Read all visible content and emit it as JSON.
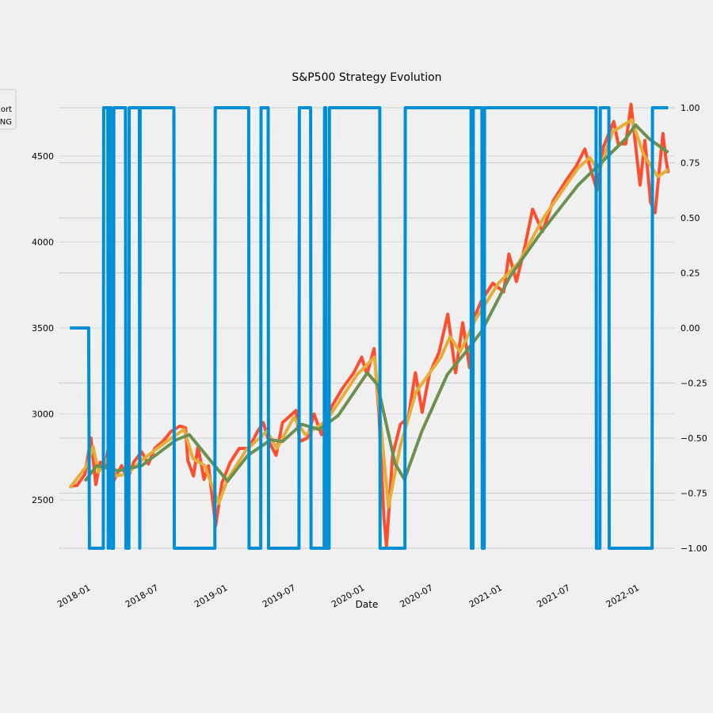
{
  "chart_data": {
    "type": "line",
    "title": "S&P500 Strategy Evolution",
    "xlabel": "Date",
    "ylabel": "",
    "x_ticks": [
      "2018-01",
      "2018-07",
      "2019-01",
      "2019-07",
      "2020-01",
      "2020-07",
      "2021-01",
      "2021-07",
      "2022-01"
    ],
    "y_left_ticks": [
      "2500",
      "3000",
      "3500",
      "4000",
      "4500"
    ],
    "y_right_ticks": [
      "−1.00",
      "−0.75",
      "−0.50",
      "−0.25",
      "0.00",
      "0.25",
      "0.50",
      "0.75",
      "1.00"
    ],
    "ylim_left": [
      2220,
      4780
    ],
    "ylim_right": [
      -1.0,
      1.0
    ],
    "xlim": [
      "2017-11-01",
      "2022-04-30"
    ],
    "grid": true,
    "legend": {
      "placement": "top-left",
      "entries": [
        "ort",
        "NG"
      ]
    },
    "colors": {
      "price": "#fc4f30",
      "ma_short": "#e5ae38",
      "ma_long": "#6d904f",
      "position": "#008fd5"
    },
    "series": [
      {
        "axis": "left",
        "color_key": "price",
        "points": [
          [
            "2017-12-01",
            2580
          ],
          [
            "2017-12-20",
            2585
          ],
          [
            "2018-01-10",
            2650
          ],
          [
            "2018-01-26",
            2860
          ],
          [
            "2018-02-08",
            2590
          ],
          [
            "2018-02-20",
            2720
          ],
          [
            "2018-03-05",
            2690
          ],
          [
            "2018-03-12",
            2790
          ],
          [
            "2018-03-23",
            2590
          ],
          [
            "2018-04-05",
            2650
          ],
          [
            "2018-04-18",
            2700
          ],
          [
            "2018-05-03",
            2620
          ],
          [
            "2018-05-20",
            2720
          ],
          [
            "2018-06-10",
            2780
          ],
          [
            "2018-06-28",
            2710
          ],
          [
            "2018-07-15",
            2800
          ],
          [
            "2018-08-05",
            2840
          ],
          [
            "2018-08-28",
            2900
          ],
          [
            "2018-09-20",
            2930
          ],
          [
            "2018-10-05",
            2920
          ],
          [
            "2018-10-11",
            2730
          ],
          [
            "2018-10-26",
            2640
          ],
          [
            "2018-11-07",
            2810
          ],
          [
            "2018-11-23",
            2620
          ],
          [
            "2018-12-05",
            2700
          ],
          [
            "2018-12-24",
            2350
          ],
          [
            "2019-01-10",
            2600
          ],
          [
            "2019-02-01",
            2720
          ],
          [
            "2019-02-25",
            2800
          ],
          [
            "2019-03-22",
            2800
          ],
          [
            "2019-04-15",
            2900
          ],
          [
            "2019-04-30",
            2950
          ],
          [
            "2019-05-15",
            2840
          ],
          [
            "2019-06-03",
            2760
          ],
          [
            "2019-06-20",
            2950
          ],
          [
            "2019-07-26",
            3020
          ],
          [
            "2019-08-05",
            2840
          ],
          [
            "2019-08-25",
            2860
          ],
          [
            "2019-09-12",
            3000
          ],
          [
            "2019-10-02",
            2880
          ],
          [
            "2019-10-28",
            3040
          ],
          [
            "2019-11-27",
            3150
          ],
          [
            "2019-12-27",
            3240
          ],
          [
            "2020-01-17",
            3330
          ],
          [
            "2020-01-31",
            3230
          ],
          [
            "2020-02-19",
            3380
          ],
          [
            "2020-03-03",
            3000
          ],
          [
            "2020-03-16",
            2400
          ],
          [
            "2020-03-23",
            2230
          ],
          [
            "2020-04-08",
            2760
          ],
          [
            "2020-04-29",
            2940
          ],
          [
            "2020-05-20",
            2980
          ],
          [
            "2020-06-08",
            3240
          ],
          [
            "2020-06-26",
            3010
          ],
          [
            "2020-07-15",
            3230
          ],
          [
            "2020-08-10",
            3360
          ],
          [
            "2020-09-02",
            3580
          ],
          [
            "2020-09-23",
            3240
          ],
          [
            "2020-10-12",
            3530
          ],
          [
            "2020-10-30",
            3270
          ],
          [
            "2020-11-09",
            3550
          ],
          [
            "2020-12-01",
            3660
          ],
          [
            "2020-12-31",
            3760
          ],
          [
            "2021-01-29",
            3710
          ],
          [
            "2021-02-12",
            3930
          ],
          [
            "2021-03-04",
            3770
          ],
          [
            "2021-03-26",
            3970
          ],
          [
            "2021-04-16",
            4190
          ],
          [
            "2021-05-12",
            4060
          ],
          [
            "2021-06-10",
            4240
          ],
          [
            "2021-07-15",
            4360
          ],
          [
            "2021-08-10",
            4440
          ],
          [
            "2021-09-02",
            4540
          ],
          [
            "2021-10-04",
            4300
          ],
          [
            "2021-10-21",
            4550
          ],
          [
            "2021-11-18",
            4700
          ],
          [
            "2021-11-30",
            4570
          ],
          [
            "2021-12-20",
            4570
          ],
          [
            "2022-01-03",
            4800
          ],
          [
            "2022-01-27",
            4330
          ],
          [
            "2022-02-09",
            4590
          ],
          [
            "2022-02-24",
            4230
          ],
          [
            "2022-03-08",
            4170
          ],
          [
            "2022-03-29",
            4630
          ],
          [
            "2022-04-06",
            4480
          ],
          [
            "2022-04-12",
            4400
          ]
        ]
      },
      {
        "axis": "left",
        "color_key": "ma_short",
        "points": [
          [
            "2017-12-01",
            2570
          ],
          [
            "2018-01-15",
            2700
          ],
          [
            "2018-02-01",
            2810
          ],
          [
            "2018-02-15",
            2660
          ],
          [
            "2018-03-10",
            2740
          ],
          [
            "2018-04-01",
            2640
          ],
          [
            "2018-05-01",
            2650
          ],
          [
            "2018-06-15",
            2740
          ],
          [
            "2018-08-15",
            2840
          ],
          [
            "2018-10-01",
            2910
          ],
          [
            "2018-10-25",
            2740
          ],
          [
            "2018-11-25",
            2700
          ],
          [
            "2019-01-01",
            2480
          ],
          [
            "2019-01-25",
            2620
          ],
          [
            "2019-03-15",
            2790
          ],
          [
            "2019-05-10",
            2900
          ],
          [
            "2019-06-05",
            2800
          ],
          [
            "2019-07-20",
            2980
          ],
          [
            "2019-08-20",
            2880
          ],
          [
            "2019-10-15",
            2960
          ],
          [
            "2020-01-05",
            3230
          ],
          [
            "2020-02-20",
            3330
          ],
          [
            "2020-03-28",
            2460
          ],
          [
            "2020-04-28",
            2810
          ],
          [
            "2020-06-10",
            3130
          ],
          [
            "2020-08-15",
            3330
          ],
          [
            "2020-09-08",
            3450
          ],
          [
            "2020-10-05",
            3360
          ],
          [
            "2020-11-15",
            3550
          ],
          [
            "2021-01-15",
            3760
          ],
          [
            "2021-03-10",
            3880
          ],
          [
            "2021-05-15",
            4140
          ],
          [
            "2021-08-15",
            4430
          ],
          [
            "2021-09-15",
            4490
          ],
          [
            "2021-10-10",
            4410
          ],
          [
            "2021-11-15",
            4640
          ],
          [
            "2022-01-05",
            4710
          ],
          [
            "2022-02-05",
            4510
          ],
          [
            "2022-03-15",
            4380
          ],
          [
            "2022-04-12",
            4420
          ]
        ]
      },
      {
        "axis": "left",
        "color_key": "ma_long",
        "points": [
          [
            "2018-01-10",
            2610
          ],
          [
            "2018-02-10",
            2700
          ],
          [
            "2018-04-10",
            2670
          ],
          [
            "2018-06-10",
            2700
          ],
          [
            "2018-09-10",
            2850
          ],
          [
            "2018-10-15",
            2880
          ],
          [
            "2018-12-10",
            2730
          ],
          [
            "2019-01-25",
            2610
          ],
          [
            "2019-03-20",
            2760
          ],
          [
            "2019-05-20",
            2850
          ],
          [
            "2019-06-20",
            2840
          ],
          [
            "2019-08-10",
            2940
          ],
          [
            "2019-09-25",
            2910
          ],
          [
            "2019-11-15",
            2990
          ],
          [
            "2020-02-01",
            3240
          ],
          [
            "2020-02-28",
            3170
          ],
          [
            "2020-04-15",
            2710
          ],
          [
            "2020-05-10",
            2620
          ],
          [
            "2020-06-25",
            2900
          ],
          [
            "2020-09-01",
            3230
          ],
          [
            "2020-10-20",
            3360
          ],
          [
            "2020-12-01",
            3480
          ],
          [
            "2021-02-15",
            3800
          ],
          [
            "2021-05-10",
            4060
          ],
          [
            "2021-08-15",
            4330
          ],
          [
            "2021-10-20",
            4470
          ],
          [
            "2021-12-20",
            4600
          ],
          [
            "2022-01-15",
            4680
          ],
          [
            "2022-02-20",
            4600
          ],
          [
            "2022-04-12",
            4520
          ]
        ]
      },
      {
        "axis": "right",
        "color_key": "position",
        "step": true,
        "points": [
          [
            "2017-12-01",
            0
          ],
          [
            "2018-01-20",
            0
          ],
          [
            "2018-01-22",
            -1
          ],
          [
            "2018-02-28",
            -1
          ],
          [
            "2018-03-01",
            1
          ],
          [
            "2018-03-12",
            1
          ],
          [
            "2018-03-13",
            -1
          ],
          [
            "2018-03-14",
            1
          ],
          [
            "2018-03-20",
            1
          ],
          [
            "2018-03-21",
            -1
          ],
          [
            "2018-03-27",
            -1
          ],
          [
            "2018-03-28",
            1
          ],
          [
            "2018-04-28",
            1
          ],
          [
            "2018-04-29",
            -1
          ],
          [
            "2018-05-07",
            -1
          ],
          [
            "2018-05-08",
            1
          ],
          [
            "2018-06-04",
            1
          ],
          [
            "2018-06-05",
            -1
          ],
          [
            "2018-06-06",
            1
          ],
          [
            "2018-09-04",
            1
          ],
          [
            "2018-09-05",
            -1
          ],
          [
            "2018-12-22",
            -1
          ],
          [
            "2018-12-23",
            1
          ],
          [
            "2019-03-22",
            1
          ],
          [
            "2019-03-23",
            -1
          ],
          [
            "2019-04-23",
            -1
          ],
          [
            "2019-04-24",
            1
          ],
          [
            "2019-05-13",
            1
          ],
          [
            "2019-05-14",
            -1
          ],
          [
            "2019-08-03",
            -1
          ],
          [
            "2019-08-04",
            1
          ],
          [
            "2019-09-03",
            1
          ],
          [
            "2019-09-04",
            -1
          ],
          [
            "2019-10-09",
            -1
          ],
          [
            "2019-10-10",
            1
          ],
          [
            "2019-10-13",
            1
          ],
          [
            "2019-10-14",
            -1
          ],
          [
            "2019-10-22",
            -1
          ],
          [
            "2019-10-23",
            1
          ],
          [
            "2020-03-05",
            1
          ],
          [
            "2020-03-06",
            -1
          ],
          [
            "2020-05-11",
            -1
          ],
          [
            "2020-05-12",
            1
          ],
          [
            "2020-11-03",
            1
          ],
          [
            "2020-11-04",
            -1
          ],
          [
            "2020-11-08",
            -1
          ],
          [
            "2020-11-09",
            1
          ],
          [
            "2020-12-02",
            1
          ],
          [
            "2020-12-03",
            -1
          ],
          [
            "2020-12-08",
            -1
          ],
          [
            "2020-12-09",
            1
          ],
          [
            "2021-10-02",
            1
          ],
          [
            "2021-10-03",
            -1
          ],
          [
            "2021-10-12",
            -1
          ],
          [
            "2021-10-13",
            1
          ],
          [
            "2021-11-05",
            1
          ],
          [
            "2021-11-06",
            -1
          ],
          [
            "2022-02-28",
            -1
          ],
          [
            "2022-03-01",
            1
          ],
          [
            "2022-04-12",
            1
          ]
        ]
      }
    ]
  }
}
